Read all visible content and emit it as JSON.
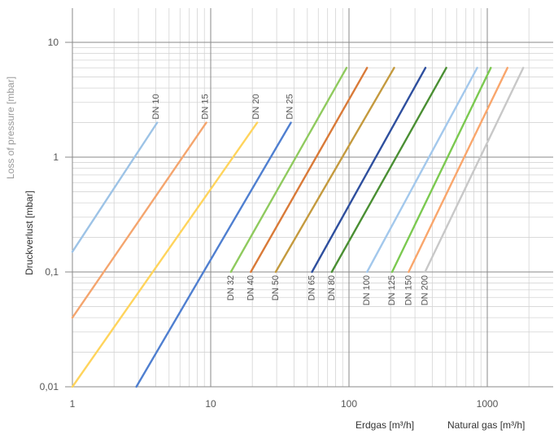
{
  "chart_data": {
    "type": "line",
    "x_scale": "log",
    "y_scale": "log",
    "xlim": [
      1,
      2000
    ],
    "ylim": [
      0.01,
      20
    ],
    "x_ticks": [
      "1",
      "10",
      "100",
      "1000"
    ],
    "y_ticks": [
      "0,01",
      "0,1",
      "1",
      "10"
    ],
    "ylabel": "Druckverlust [mbar]",
    "ylabel_en": "Loss of pressure [mbar]",
    "xlabel": "Erdgas [m³/h]",
    "xlabel_en": "Natural gas [m³/h]",
    "grid": true,
    "series": [
      {
        "name": "DN 10",
        "color": "#9dc3e6",
        "x": [
          1,
          4.1
        ],
        "y": [
          0.15,
          2
        ]
      },
      {
        "name": "DN 15",
        "color": "#f4a56e",
        "x": [
          1,
          9.3
        ],
        "y": [
          0.04,
          2
        ]
      },
      {
        "name": "DN 20",
        "color": "#ffd45c",
        "x": [
          1,
          21.7
        ],
        "y": [
          0.01,
          2
        ]
      },
      {
        "name": "DN 25",
        "color": "#4f7fd0",
        "x": [
          2.9,
          38
        ],
        "y": [
          0.01,
          2
        ]
      },
      {
        "name": "DN 32",
        "color": "#8fca5e",
        "x": [
          14,
          96
        ],
        "y": [
          0.1,
          6
        ]
      },
      {
        "name": "DN 40",
        "color": "#d97a38",
        "x": [
          19.5,
          135
        ],
        "y": [
          0.1,
          6
        ]
      },
      {
        "name": "DN 50",
        "color": "#c49a3e",
        "x": [
          29.5,
          212
        ],
        "y": [
          0.1,
          6
        ]
      },
      {
        "name": "DN 65",
        "color": "#2e4f9e",
        "x": [
          54,
          357
        ],
        "y": [
          0.1,
          6
        ]
      },
      {
        "name": "DN 80",
        "color": "#4a8f33",
        "x": [
          75,
          505
        ],
        "y": [
          0.1,
          6
        ]
      },
      {
        "name": "DN 100",
        "color": "#a3c8ec",
        "x": [
          135,
          845
        ],
        "y": [
          0.1,
          6
        ]
      },
      {
        "name": "DN 125",
        "color": "#7bc950",
        "x": [
          205,
          1060
        ],
        "y": [
          0.1,
          6
        ]
      },
      {
        "name": "DN 150",
        "color": "#f9a66c",
        "x": [
          270,
          1400
        ],
        "y": [
          0.1,
          6
        ]
      },
      {
        "name": "DN 200",
        "color": "#c8c8c8",
        "x": [
          355,
          1820
        ],
        "y": [
          0.1,
          6
        ]
      }
    ]
  }
}
